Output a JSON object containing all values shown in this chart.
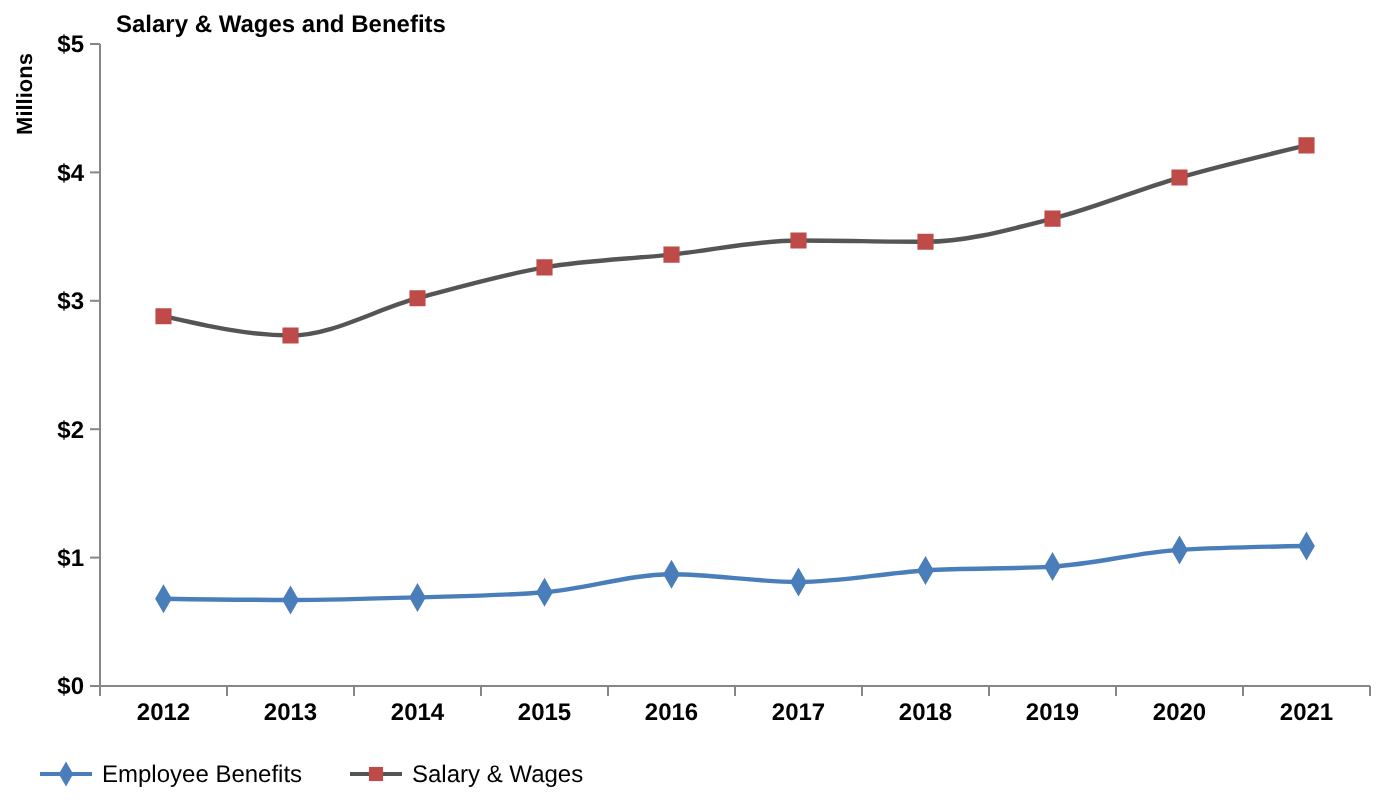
{
  "chart_data": {
    "type": "line",
    "title": "Salary & Wages and Benefits",
    "ylabel": "Millions",
    "categories": [
      "2012",
      "2013",
      "2014",
      "2015",
      "2016",
      "2017",
      "2018",
      "2019",
      "2020",
      "2021"
    ],
    "series": [
      {
        "name": "Employee Benefits",
        "color": "#4a7ebb",
        "marker": "diamond",
        "values": [
          0.68,
          0.67,
          0.69,
          0.73,
          0.87,
          0.81,
          0.9,
          0.93,
          1.06,
          1.09
        ]
      },
      {
        "name": "Salary & Wages",
        "color": "#be4b48",
        "marker": "square",
        "values": [
          2.88,
          2.73,
          3.02,
          3.26,
          3.36,
          3.47,
          3.46,
          3.64,
          3.96,
          4.21
        ]
      }
    ],
    "ylim": [
      0,
      5
    ],
    "yticks": [
      {
        "value": 0,
        "label": "$0"
      },
      {
        "value": 1,
        "label": "$1"
      },
      {
        "value": 2,
        "label": "$2"
      },
      {
        "value": 3,
        "label": "$3"
      },
      {
        "value": 4,
        "label": "$4"
      },
      {
        "value": 5,
        "label": "$5"
      }
    ],
    "legend": "bottom",
    "grid": false
  }
}
